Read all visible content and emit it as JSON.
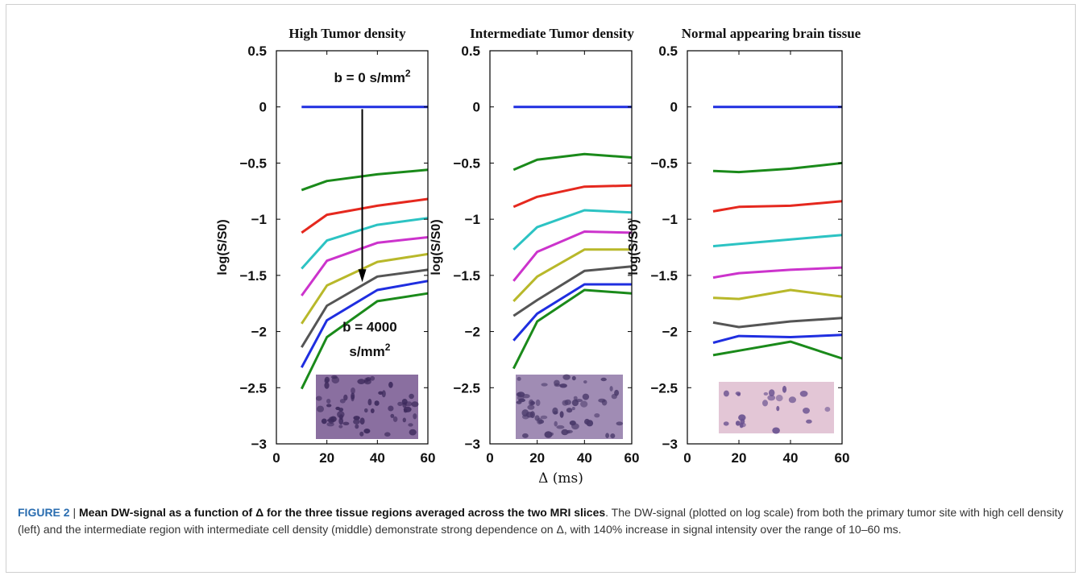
{
  "chart_data": [
    {
      "type": "line",
      "title": "High Tumor density",
      "ylabel": "log(S/S0)",
      "xlabel": "",
      "xlim": [
        0,
        60
      ],
      "ylim": [
        -3,
        0.5
      ],
      "xticks": [
        0,
        20,
        40,
        60
      ],
      "yticks": [
        0.5,
        0,
        -0.5,
        -1,
        -1.5,
        -2,
        -2.5,
        -3
      ],
      "x": [
        10,
        20,
        40,
        60
      ],
      "series": [
        {
          "color": "#1f2ee0",
          "values": [
            0,
            0,
            0,
            0
          ]
        },
        {
          "color": "#1a8a1a",
          "values": [
            -0.74,
            -0.66,
            -0.6,
            -0.56
          ]
        },
        {
          "color": "#e5281e",
          "values": [
            -1.12,
            -0.96,
            -0.88,
            -0.82
          ]
        },
        {
          "color": "#2cc3c3",
          "values": [
            -1.44,
            -1.19,
            -1.05,
            -0.99
          ]
        },
        {
          "color": "#cc33cc",
          "values": [
            -1.68,
            -1.37,
            -1.21,
            -1.16
          ]
        },
        {
          "color": "#b8b82a",
          "values": [
            -1.93,
            -1.59,
            -1.38,
            -1.31
          ]
        },
        {
          "color": "#555555",
          "values": [
            -2.14,
            -1.77,
            -1.51,
            -1.45
          ]
        },
        {
          "color": "#1f2ee0",
          "values": [
            -2.32,
            -1.9,
            -1.63,
            -1.55
          ]
        },
        {
          "color": "#1a8a1a",
          "values": [
            -2.51,
            -2.05,
            -1.73,
            -1.66
          ]
        }
      ],
      "annotations": [
        {
          "text": "b = 0 s/mm",
          "sup": "2",
          "x": 38,
          "y": 0.22
        },
        {
          "text": "b = 4000",
          "x": 37,
          "y": -2.0
        },
        {
          "text": "s/mm",
          "sup": "2",
          "x": 37,
          "y": -2.22
        }
      ],
      "arrow": {
        "x": 34,
        "y_start": -0.02,
        "y_end": -1.56
      }
    },
    {
      "type": "line",
      "title": "Intermediate Tumor density",
      "ylabel": "log(S/S0)",
      "xlabel": "Δ (ms)",
      "xlim": [
        0,
        60
      ],
      "ylim": [
        -3,
        0.5
      ],
      "xticks": [
        0,
        20,
        40,
        60
      ],
      "yticks": [
        0.5,
        0,
        -0.5,
        -1,
        -1.5,
        -2,
        -2.5,
        -3
      ],
      "x": [
        10,
        20,
        40,
        60
      ],
      "series": [
        {
          "color": "#1f2ee0",
          "values": [
            0,
            0,
            0,
            0
          ]
        },
        {
          "color": "#1a8a1a",
          "values": [
            -0.56,
            -0.47,
            -0.42,
            -0.45
          ]
        },
        {
          "color": "#e5281e",
          "values": [
            -0.89,
            -0.8,
            -0.71,
            -0.7
          ]
        },
        {
          "color": "#2cc3c3",
          "values": [
            -1.27,
            -1.07,
            -0.92,
            -0.94
          ]
        },
        {
          "color": "#cc33cc",
          "values": [
            -1.55,
            -1.29,
            -1.11,
            -1.12
          ]
        },
        {
          "color": "#b8b82a",
          "values": [
            -1.73,
            -1.51,
            -1.27,
            -1.27
          ]
        },
        {
          "color": "#555555",
          "values": [
            -1.86,
            -1.72,
            -1.46,
            -1.42
          ]
        },
        {
          "color": "#1f2ee0",
          "values": [
            -2.08,
            -1.84,
            -1.58,
            -1.58
          ]
        },
        {
          "color": "#1a8a1a",
          "values": [
            -2.33,
            -1.91,
            -1.63,
            -1.66
          ]
        }
      ]
    },
    {
      "type": "line",
      "title": "Normal appearing brain tissue",
      "ylabel": "log(S/S0)",
      "xlabel": "",
      "xlim": [
        0,
        60
      ],
      "ylim": [
        -3,
        0.5
      ],
      "xticks": [
        0,
        20,
        40,
        60
      ],
      "yticks": [
        0.5,
        0,
        -0.5,
        -1,
        -1.5,
        -2,
        -2.5,
        -3
      ],
      "x": [
        10,
        20,
        40,
        60
      ],
      "series": [
        {
          "color": "#1f2ee0",
          "values": [
            0,
            0,
            0,
            0
          ]
        },
        {
          "color": "#1a8a1a",
          "values": [
            -0.57,
            -0.58,
            -0.55,
            -0.5
          ]
        },
        {
          "color": "#e5281e",
          "values": [
            -0.93,
            -0.89,
            -0.88,
            -0.84
          ]
        },
        {
          "color": "#2cc3c3",
          "values": [
            -1.24,
            -1.22,
            -1.18,
            -1.14
          ]
        },
        {
          "color": "#cc33cc",
          "values": [
            -1.52,
            -1.48,
            -1.45,
            -1.43
          ]
        },
        {
          "color": "#b8b82a",
          "values": [
            -1.7,
            -1.71,
            -1.63,
            -1.69
          ]
        },
        {
          "color": "#555555",
          "values": [
            -1.92,
            -1.96,
            -1.91,
            -1.88
          ]
        },
        {
          "color": "#1f2ee0",
          "values": [
            -2.1,
            -2.04,
            -2.05,
            -2.03
          ]
        },
        {
          "color": "#1a8a1a",
          "values": [
            -2.21,
            -2.17,
            -2.09,
            -2.24
          ]
        }
      ]
    }
  ],
  "thumbnails": [
    {
      "name": "histology-image-high",
      "bg": "#8a6fa0",
      "spot": "#3d2a5c"
    },
    {
      "name": "histology-image-intermediate",
      "bg": "#a08cb4",
      "spot": "#4a3a6a"
    },
    {
      "name": "histology-image-normal",
      "bg": "#e3c6d6",
      "spot": "#6a5290"
    }
  ],
  "caption": {
    "lead": "FIGURE 2",
    "separator": " | ",
    "bold": "Mean DW-signal as a function of Δ for the three tissue regions averaged across the two MRI slices",
    "rest": ". The DW-signal (plotted on log scale) from both the primary tumor site with high cell density (left) and the intermediate region with intermediate cell density (middle) demonstrate strong dependence on Δ, with 140% increase in signal intensity over the range of 10–60 ms."
  }
}
